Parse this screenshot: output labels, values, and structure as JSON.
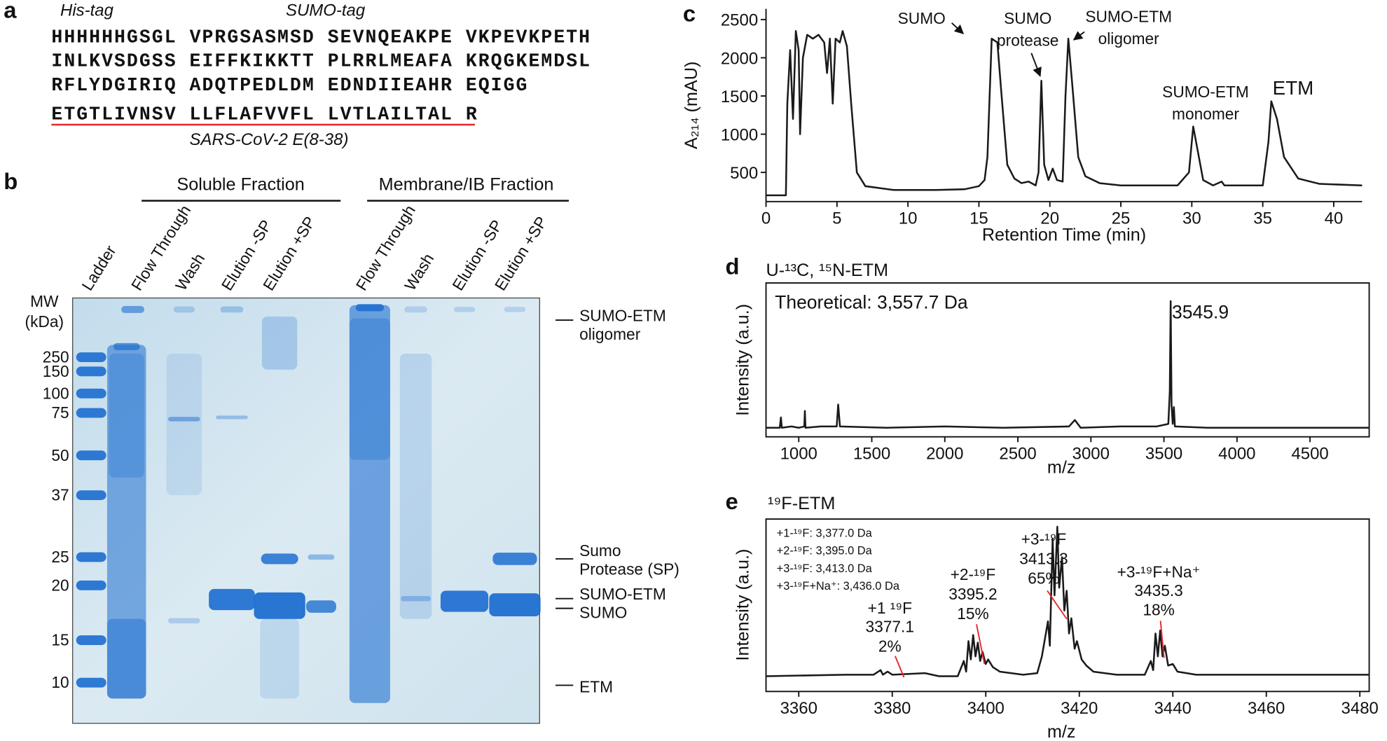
{
  "panel_labels": [
    "a",
    "b",
    "c",
    "d",
    "e"
  ],
  "panel_a": {
    "his_tag_label": "His-tag",
    "sumo_tag_label": "SUMO-tag",
    "his_residues": "HHHHHH",
    "sequence_lines": [
      "GSGL VPRGSASMSD SEVNQEAKPE VKPEVKPETH",
      "INLKVSDGSS EIFFKIKKTT PLRRLMEAFA KRQGKEMDSL",
      "RFLYDGIRIQ ADQTPEDLDM EDNDIIEAHR EQIGG"
    ],
    "etm_sequence": "ETGTLIVNSV LLFLAFVVFL LVTLAILTAL R",
    "etm_label": "SARS-CoV-2 E(8-38)"
  },
  "panel_b": {
    "fraction_headers": [
      "Soluble Fraction",
      "Membrane/IB Fraction"
    ],
    "lanes": [
      "Ladder",
      "Flow Through",
      "Wash",
      "Elution -SP",
      "Elution +SP",
      "Flow Through",
      "Wash",
      "Elution -SP",
      "Elution +SP"
    ],
    "mw_header": [
      "MW",
      "(kDa)"
    ],
    "mw_markers": [
      "250",
      "150",
      "100",
      "75",
      "50",
      "37",
      "25",
      "20",
      "15",
      "10"
    ],
    "band_labels": [
      [
        "SUMO-ETM",
        "oligomer"
      ],
      [
        "Sumo",
        "Protease (SP)"
      ],
      [
        "SUMO-ETM"
      ],
      [
        "SUMO"
      ],
      [
        "ETM"
      ]
    ]
  },
  "chart_data": [
    {
      "type": "line",
      "frame": "axes",
      "x_label": "Retention Time (min)",
      "y_label": "A₂₁₄ (mAU)",
      "xlim": [
        0,
        42
      ],
      "ylim": [
        118,
        2640
      ],
      "xticks": [
        0,
        5,
        10,
        15,
        20,
        25,
        30,
        35,
        40
      ],
      "yticks": [
        500,
        1000,
        1500,
        2000,
        2500
      ],
      "series": [
        {
          "color": "#1a1a1a",
          "x": [
            0,
            1.4,
            1.5,
            1.7,
            1.9,
            2.1,
            2.3,
            2.4,
            2.6,
            2.9,
            3.3,
            3.7,
            4.1,
            4.3,
            4.5,
            4.7,
            4.9,
            5.2,
            5.4,
            5.7,
            6.0,
            6.4,
            7,
            9,
            12,
            14,
            15,
            15.4,
            15.6,
            15.9,
            16.3,
            16.6,
            17,
            17.5,
            18,
            18.5,
            19,
            19.2,
            19.4,
            19.6,
            19.9,
            20.2,
            20.5,
            20.9,
            21.1,
            21.3,
            21.6,
            22,
            22.5,
            23.5,
            25,
            29,
            29.8,
            30.1,
            30.4,
            30.8,
            31.5,
            32.1,
            32.3,
            35,
            35.4,
            35.6,
            36,
            36.5,
            37.5,
            39,
            42
          ],
          "values": [
            200,
            200,
            1400,
            2100,
            1200,
            2350,
            2100,
            1000,
            2000,
            2300,
            2250,
            2300,
            2200,
            1800,
            2250,
            1400,
            2250,
            2200,
            2350,
            2150,
            1400,
            500,
            320,
            270,
            270,
            280,
            320,
            400,
            700,
            2250,
            2200,
            1500,
            600,
            420,
            360,
            380,
            330,
            500,
            1700,
            600,
            400,
            550,
            400,
            380,
            1500,
            2250,
            1600,
            700,
            450,
            360,
            330,
            330,
            500,
            1100,
            800,
            400,
            330,
            380,
            330,
            330,
            900,
            1430,
            1200,
            700,
            420,
            350,
            330
          ]
        }
      ],
      "annotations": [
        {
          "lines": [
            "SUMO"
          ]
        },
        {
          "lines": [
            "SUMO",
            "protease"
          ]
        },
        {
          "lines": [
            "SUMO-ETM",
            "oligomer"
          ]
        },
        {
          "lines": [
            "SUMO-ETM",
            "monomer"
          ]
        },
        {
          "lines": [
            "ETM"
          ],
          "color": "#e8262b"
        }
      ]
    },
    {
      "type": "line",
      "frame": "box",
      "title": "U-¹³C, ¹⁵N-ETM",
      "x_label": "m/z",
      "y_label": "Intensity (a.u.)",
      "xlim": [
        776,
        4905
      ],
      "ylim": [
        -0.05,
        1.14
      ],
      "xticks": [
        1000,
        1500,
        2000,
        2500,
        3000,
        3500,
        4000,
        4500
      ],
      "series": [
        {
          "color": "#1a1a1a",
          "x": [
            776,
            870,
            878,
            884,
            950,
            1000,
            1038,
            1042,
            1046,
            1150,
            1260,
            1270,
            1282,
            1600,
            2000,
            2400,
            2850,
            2890,
            2930,
            3200,
            3450,
            3530,
            3540,
            3546,
            3552,
            3560,
            3568,
            3575,
            3800,
            4200,
            4600,
            4905
          ],
          "values": [
            0.02,
            0.02,
            0.1,
            0.02,
            0.03,
            0.02,
            0.03,
            0.15,
            0.02,
            0.03,
            0.03,
            0.2,
            0.03,
            0.02,
            0.03,
            0.02,
            0.03,
            0.08,
            0.02,
            0.03,
            0.03,
            0.05,
            0.3,
            1.0,
            0.2,
            0.05,
            0.18,
            0.03,
            0.02,
            0.02,
            0.02,
            0.02
          ]
        }
      ],
      "annotations": [
        {
          "lines": [
            "Theoretical: 3,557.7 Da"
          ]
        },
        {
          "lines": [
            "3545.9"
          ],
          "color": "#e8262b"
        }
      ]
    },
    {
      "type": "line",
      "frame": "box",
      "title": "¹⁹F-ETM",
      "x_label": "m/z",
      "y_label": "Intensity (a.u.)",
      "xlim": [
        3353,
        3482
      ],
      "ylim": [
        -0.08,
        1.05
      ],
      "xticks": [
        3360,
        3380,
        3400,
        3420,
        3440,
        3460,
        3480
      ],
      "legend_text": [
        "+1-¹⁹F: 3,377.0 Da",
        "+2-¹⁹F: 3,395.0 Da",
        "+3-¹⁹F: 3,413.0 Da",
        "+3-¹⁹F+Na⁺: 3,436.0 Da"
      ],
      "series": [
        {
          "color": "#1a1a1a",
          "x": [
            3353,
            3370,
            3376,
            3377.5,
            3378,
            3379,
            3380,
            3387,
            3390,
            3394,
            3395.3,
            3395.8,
            3396.3,
            3396.8,
            3397.3,
            3397.8,
            3398.3,
            3398.8,
            3399.3,
            3400,
            3400.5,
            3401.5,
            3403,
            3408,
            3411,
            3412,
            3413.3,
            3413.7,
            3414.3,
            3414.7,
            3415.3,
            3415.7,
            3416.3,
            3416.8,
            3417.3,
            3417.8,
            3418.3,
            3419,
            3419.5,
            3420.5,
            3421.5,
            3423,
            3428,
            3434,
            3435.3,
            3435.8,
            3436.3,
            3436.8,
            3437.3,
            3437.8,
            3438.3,
            3439,
            3440,
            3441,
            3445,
            3482
          ],
          "values": [
            0.02,
            0.03,
            0.03,
            0.06,
            0.03,
            0.05,
            0.03,
            0.04,
            0.02,
            0.02,
            0.12,
            0.05,
            0.25,
            0.13,
            0.29,
            0.15,
            0.24,
            0.12,
            0.18,
            0.1,
            0.13,
            0.08,
            0.05,
            0.03,
            0.04,
            0.15,
            0.38,
            0.22,
            0.92,
            0.55,
            1.0,
            0.6,
            0.8,
            0.45,
            0.58,
            0.3,
            0.4,
            0.2,
            0.25,
            0.13,
            0.09,
            0.05,
            0.03,
            0.03,
            0.12,
            0.06,
            0.3,
            0.15,
            0.32,
            0.15,
            0.22,
            0.09,
            0.1,
            0.05,
            0.03,
            0.03
          ]
        }
      ],
      "annotations": [
        {
          "lines": [
            "+1 ¹⁹F",
            "3377.1",
            "2%"
          ],
          "color": "#e8262b"
        },
        {
          "lines": [
            "+2-¹⁹F",
            "3395.2",
            "15%"
          ],
          "color": "#e8262b"
        },
        {
          "lines": [
            "+3-¹⁹F",
            "3413.3",
            "65%"
          ],
          "color": "#e8262b"
        },
        {
          "lines": [
            "+3-¹⁹F+Na⁺",
            "3435.3",
            "18%"
          ],
          "color": "#e8262b"
        }
      ]
    }
  ]
}
